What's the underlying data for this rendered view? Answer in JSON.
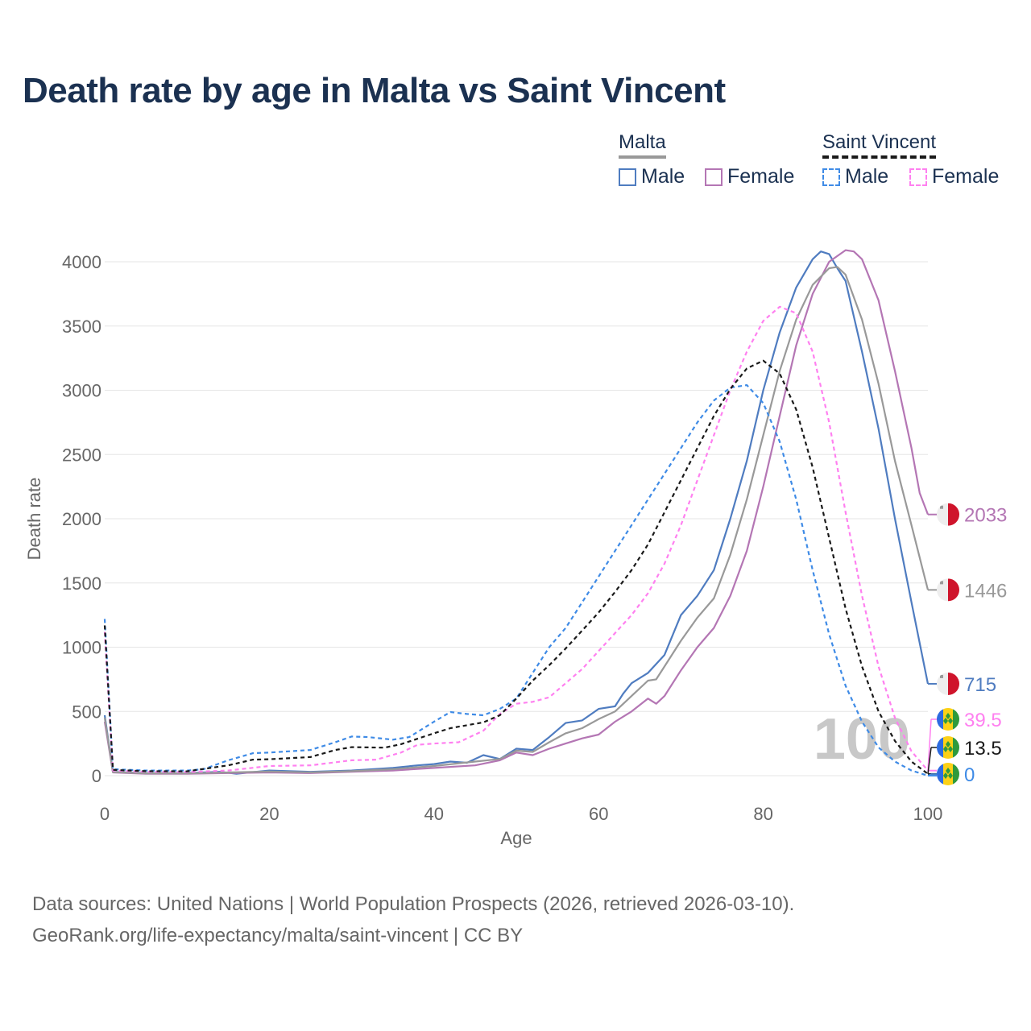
{
  "title": "Death rate by age in Malta vs Saint Vincent",
  "legend": {
    "malta": {
      "title": "Malta",
      "male": "Male",
      "female": "Female"
    },
    "saint_vincent": {
      "title": "Saint Vincent",
      "male": "Male",
      "female": "Female"
    }
  },
  "colors": {
    "malta_male": "#4f7cc0",
    "malta_female": "#b476b4",
    "malta_total": "#999999",
    "sv_male": "#3f8be6",
    "sv_female": "#ff80f0",
    "sv_total": "#1a1a1a",
    "title": "#1b3151",
    "grid": "#e6e6e6",
    "axis_text": "#666666",
    "year_watermark": "#c8c8c8"
  },
  "year_watermark": "100",
  "end_labels": [
    {
      "series": "malta_female",
      "text": "2033",
      "flag": "malta"
    },
    {
      "series": "malta_total",
      "text": "1446",
      "flag": "malta"
    },
    {
      "series": "malta_male",
      "text": "715",
      "flag": "malta"
    },
    {
      "series": "sv_female",
      "text": "39.5",
      "flag": "saint-vincent"
    },
    {
      "series": "sv_total",
      "text": "13.5",
      "flag": "saint-vincent"
    },
    {
      "series": "sv_male",
      "text": "0",
      "flag": "saint-vincent"
    }
  ],
  "source_line1": "Data sources: United Nations | World Population Prospects (2026, retrieved 2026-03-10).",
  "source_line2": "GeoRank.org/life-expectancy/malta/saint-vincent | CC BY",
  "chart_data": {
    "type": "line",
    "title": "Death rate by age in Malta vs Saint Vincent",
    "xlabel": "Age",
    "ylabel": "Death rate",
    "xlim": [
      0,
      100
    ],
    "ylim": [
      0,
      4000
    ],
    "xticks": [
      0,
      20,
      40,
      60,
      80,
      100
    ],
    "yticks": [
      0,
      500,
      1000,
      1500,
      2000,
      2500,
      3000,
      3500,
      4000
    ],
    "grid": true,
    "series": [
      {
        "name": "Malta Male",
        "key": "malta_male",
        "dashed": false,
        "points": [
          [
            0,
            470
          ],
          [
            1,
            30
          ],
          [
            5,
            20
          ],
          [
            10,
            20
          ],
          [
            14,
            30
          ],
          [
            16,
            15
          ],
          [
            20,
            40
          ],
          [
            25,
            30
          ],
          [
            30,
            40
          ],
          [
            35,
            60
          ],
          [
            38,
            80
          ],
          [
            40,
            90
          ],
          [
            42,
            110
          ],
          [
            44,
            100
          ],
          [
            46,
            160
          ],
          [
            48,
            130
          ],
          [
            50,
            210
          ],
          [
            52,
            200
          ],
          [
            54,
            300
          ],
          [
            56,
            410
          ],
          [
            58,
            430
          ],
          [
            60,
            520
          ],
          [
            62,
            540
          ],
          [
            63,
            640
          ],
          [
            64,
            720
          ],
          [
            66,
            800
          ],
          [
            68,
            940
          ],
          [
            70,
            1250
          ],
          [
            72,
            1400
          ],
          [
            74,
            1600
          ],
          [
            76,
            2000
          ],
          [
            78,
            2450
          ],
          [
            80,
            3000
          ],
          [
            82,
            3450
          ],
          [
            84,
            3800
          ],
          [
            86,
            4020
          ],
          [
            87,
            4080
          ],
          [
            88,
            4060
          ],
          [
            89,
            3950
          ],
          [
            90,
            3850
          ],
          [
            92,
            3300
          ],
          [
            94,
            2700
          ],
          [
            96,
            2000
          ],
          [
            98,
            1350
          ],
          [
            100,
            715
          ]
        ]
      },
      {
        "name": "Malta Female",
        "key": "malta_female",
        "dashed": false,
        "points": [
          [
            0,
            420
          ],
          [
            1,
            25
          ],
          [
            5,
            15
          ],
          [
            10,
            15
          ],
          [
            15,
            20
          ],
          [
            20,
            25
          ],
          [
            25,
            20
          ],
          [
            30,
            30
          ],
          [
            35,
            40
          ],
          [
            40,
            60
          ],
          [
            45,
            80
          ],
          [
            48,
            120
          ],
          [
            50,
            180
          ],
          [
            52,
            160
          ],
          [
            54,
            210
          ],
          [
            56,
            250
          ],
          [
            58,
            290
          ],
          [
            60,
            320
          ],
          [
            62,
            420
          ],
          [
            64,
            500
          ],
          [
            66,
            600
          ],
          [
            67,
            560
          ],
          [
            68,
            620
          ],
          [
            70,
            820
          ],
          [
            72,
            1000
          ],
          [
            74,
            1150
          ],
          [
            76,
            1400
          ],
          [
            78,
            1750
          ],
          [
            80,
            2250
          ],
          [
            82,
            2800
          ],
          [
            84,
            3350
          ],
          [
            86,
            3750
          ],
          [
            88,
            4000
          ],
          [
            90,
            4090
          ],
          [
            91,
            4080
          ],
          [
            92,
            4020
          ],
          [
            94,
            3700
          ],
          [
            96,
            3150
          ],
          [
            98,
            2550
          ],
          [
            99,
            2200
          ],
          [
            100,
            2033
          ]
        ]
      },
      {
        "name": "Malta Total",
        "key": "malta_total",
        "dashed": false,
        "points": [
          [
            0,
            450
          ],
          [
            1,
            28
          ],
          [
            5,
            18
          ],
          [
            10,
            18
          ],
          [
            15,
            25
          ],
          [
            20,
            32
          ],
          [
            25,
            26
          ],
          [
            30,
            35
          ],
          [
            35,
            50
          ],
          [
            40,
            75
          ],
          [
            45,
            110
          ],
          [
            48,
            130
          ],
          [
            50,
            195
          ],
          [
            52,
            185
          ],
          [
            54,
            260
          ],
          [
            56,
            330
          ],
          [
            58,
            370
          ],
          [
            60,
            440
          ],
          [
            62,
            500
          ],
          [
            64,
            620
          ],
          [
            66,
            740
          ],
          [
            67,
            750
          ],
          [
            68,
            850
          ],
          [
            70,
            1050
          ],
          [
            72,
            1230
          ],
          [
            74,
            1380
          ],
          [
            76,
            1720
          ],
          [
            78,
            2150
          ],
          [
            80,
            2650
          ],
          [
            82,
            3150
          ],
          [
            84,
            3550
          ],
          [
            86,
            3820
          ],
          [
            88,
            3950
          ],
          [
            89,
            3960
          ],
          [
            90,
            3900
          ],
          [
            92,
            3550
          ],
          [
            94,
            3050
          ],
          [
            96,
            2450
          ],
          [
            98,
            1950
          ],
          [
            100,
            1446
          ]
        ]
      },
      {
        "name": "Saint Vincent Male",
        "key": "sv_male",
        "dashed": true,
        "points": [
          [
            0,
            1220
          ],
          [
            1,
            50
          ],
          [
            5,
            40
          ],
          [
            10,
            40
          ],
          [
            12,
            50
          ],
          [
            15,
            120
          ],
          [
            18,
            175
          ],
          [
            20,
            180
          ],
          [
            25,
            200
          ],
          [
            28,
            260
          ],
          [
            30,
            305
          ],
          [
            32,
            300
          ],
          [
            35,
            280
          ],
          [
            37,
            300
          ],
          [
            40,
            420
          ],
          [
            42,
            495
          ],
          [
            44,
            480
          ],
          [
            46,
            470
          ],
          [
            48,
            520
          ],
          [
            50,
            600
          ],
          [
            52,
            800
          ],
          [
            54,
            1000
          ],
          [
            56,
            1150
          ],
          [
            58,
            1350
          ],
          [
            60,
            1550
          ],
          [
            62,
            1750
          ],
          [
            64,
            1950
          ],
          [
            66,
            2150
          ],
          [
            68,
            2350
          ],
          [
            70,
            2550
          ],
          [
            72,
            2750
          ],
          [
            74,
            2920
          ],
          [
            76,
            3020
          ],
          [
            78,
            3040
          ],
          [
            80,
            2900
          ],
          [
            82,
            2600
          ],
          [
            84,
            2150
          ],
          [
            86,
            1600
          ],
          [
            88,
            1100
          ],
          [
            90,
            700
          ],
          [
            92,
            420
          ],
          [
            94,
            220
          ],
          [
            96,
            110
          ],
          [
            98,
            40
          ],
          [
            100,
            0
          ]
        ]
      },
      {
        "name": "Saint Vincent Female",
        "key": "sv_female",
        "dashed": true,
        "points": [
          [
            0,
            1120
          ],
          [
            1,
            40
          ],
          [
            5,
            30
          ],
          [
            10,
            28
          ],
          [
            15,
            40
          ],
          [
            20,
            75
          ],
          [
            25,
            80
          ],
          [
            30,
            120
          ],
          [
            33,
            125
          ],
          [
            36,
            180
          ],
          [
            38,
            240
          ],
          [
            40,
            250
          ],
          [
            43,
            260
          ],
          [
            46,
            350
          ],
          [
            48,
            480
          ],
          [
            50,
            560
          ],
          [
            52,
            575
          ],
          [
            54,
            610
          ],
          [
            56,
            720
          ],
          [
            58,
            830
          ],
          [
            60,
            970
          ],
          [
            62,
            1110
          ],
          [
            64,
            1250
          ],
          [
            66,
            1420
          ],
          [
            68,
            1650
          ],
          [
            70,
            1950
          ],
          [
            72,
            2300
          ],
          [
            74,
            2650
          ],
          [
            76,
            3000
          ],
          [
            78,
            3300
          ],
          [
            80,
            3540
          ],
          [
            82,
            3650
          ],
          [
            84,
            3600
          ],
          [
            86,
            3300
          ],
          [
            88,
            2750
          ],
          [
            90,
            2050
          ],
          [
            92,
            1400
          ],
          [
            94,
            850
          ],
          [
            96,
            450
          ],
          [
            98,
            190
          ],
          [
            100,
            39.5
          ]
        ]
      },
      {
        "name": "Saint Vincent Total",
        "key": "sv_total",
        "dashed": true,
        "points": [
          [
            0,
            1170
          ],
          [
            1,
            45
          ],
          [
            5,
            35
          ],
          [
            10,
            34
          ],
          [
            15,
            80
          ],
          [
            18,
            125
          ],
          [
            20,
            128
          ],
          [
            25,
            145
          ],
          [
            28,
            200
          ],
          [
            30,
            222
          ],
          [
            34,
            218
          ],
          [
            36,
            245
          ],
          [
            40,
            330
          ],
          [
            42,
            370
          ],
          [
            46,
            415
          ],
          [
            48,
            470
          ],
          [
            50,
            600
          ],
          [
            52,
            740
          ],
          [
            54,
            860
          ],
          [
            56,
            990
          ],
          [
            58,
            1130
          ],
          [
            60,
            1270
          ],
          [
            62,
            1430
          ],
          [
            64,
            1600
          ],
          [
            66,
            1800
          ],
          [
            68,
            2050
          ],
          [
            70,
            2300
          ],
          [
            72,
            2550
          ],
          [
            74,
            2800
          ],
          [
            76,
            3010
          ],
          [
            78,
            3170
          ],
          [
            80,
            3230
          ],
          [
            82,
            3130
          ],
          [
            84,
            2850
          ],
          [
            86,
            2400
          ],
          [
            88,
            1850
          ],
          [
            90,
            1300
          ],
          [
            92,
            850
          ],
          [
            94,
            500
          ],
          [
            96,
            270
          ],
          [
            98,
            110
          ],
          [
            100,
            13.5
          ]
        ]
      }
    ]
  }
}
